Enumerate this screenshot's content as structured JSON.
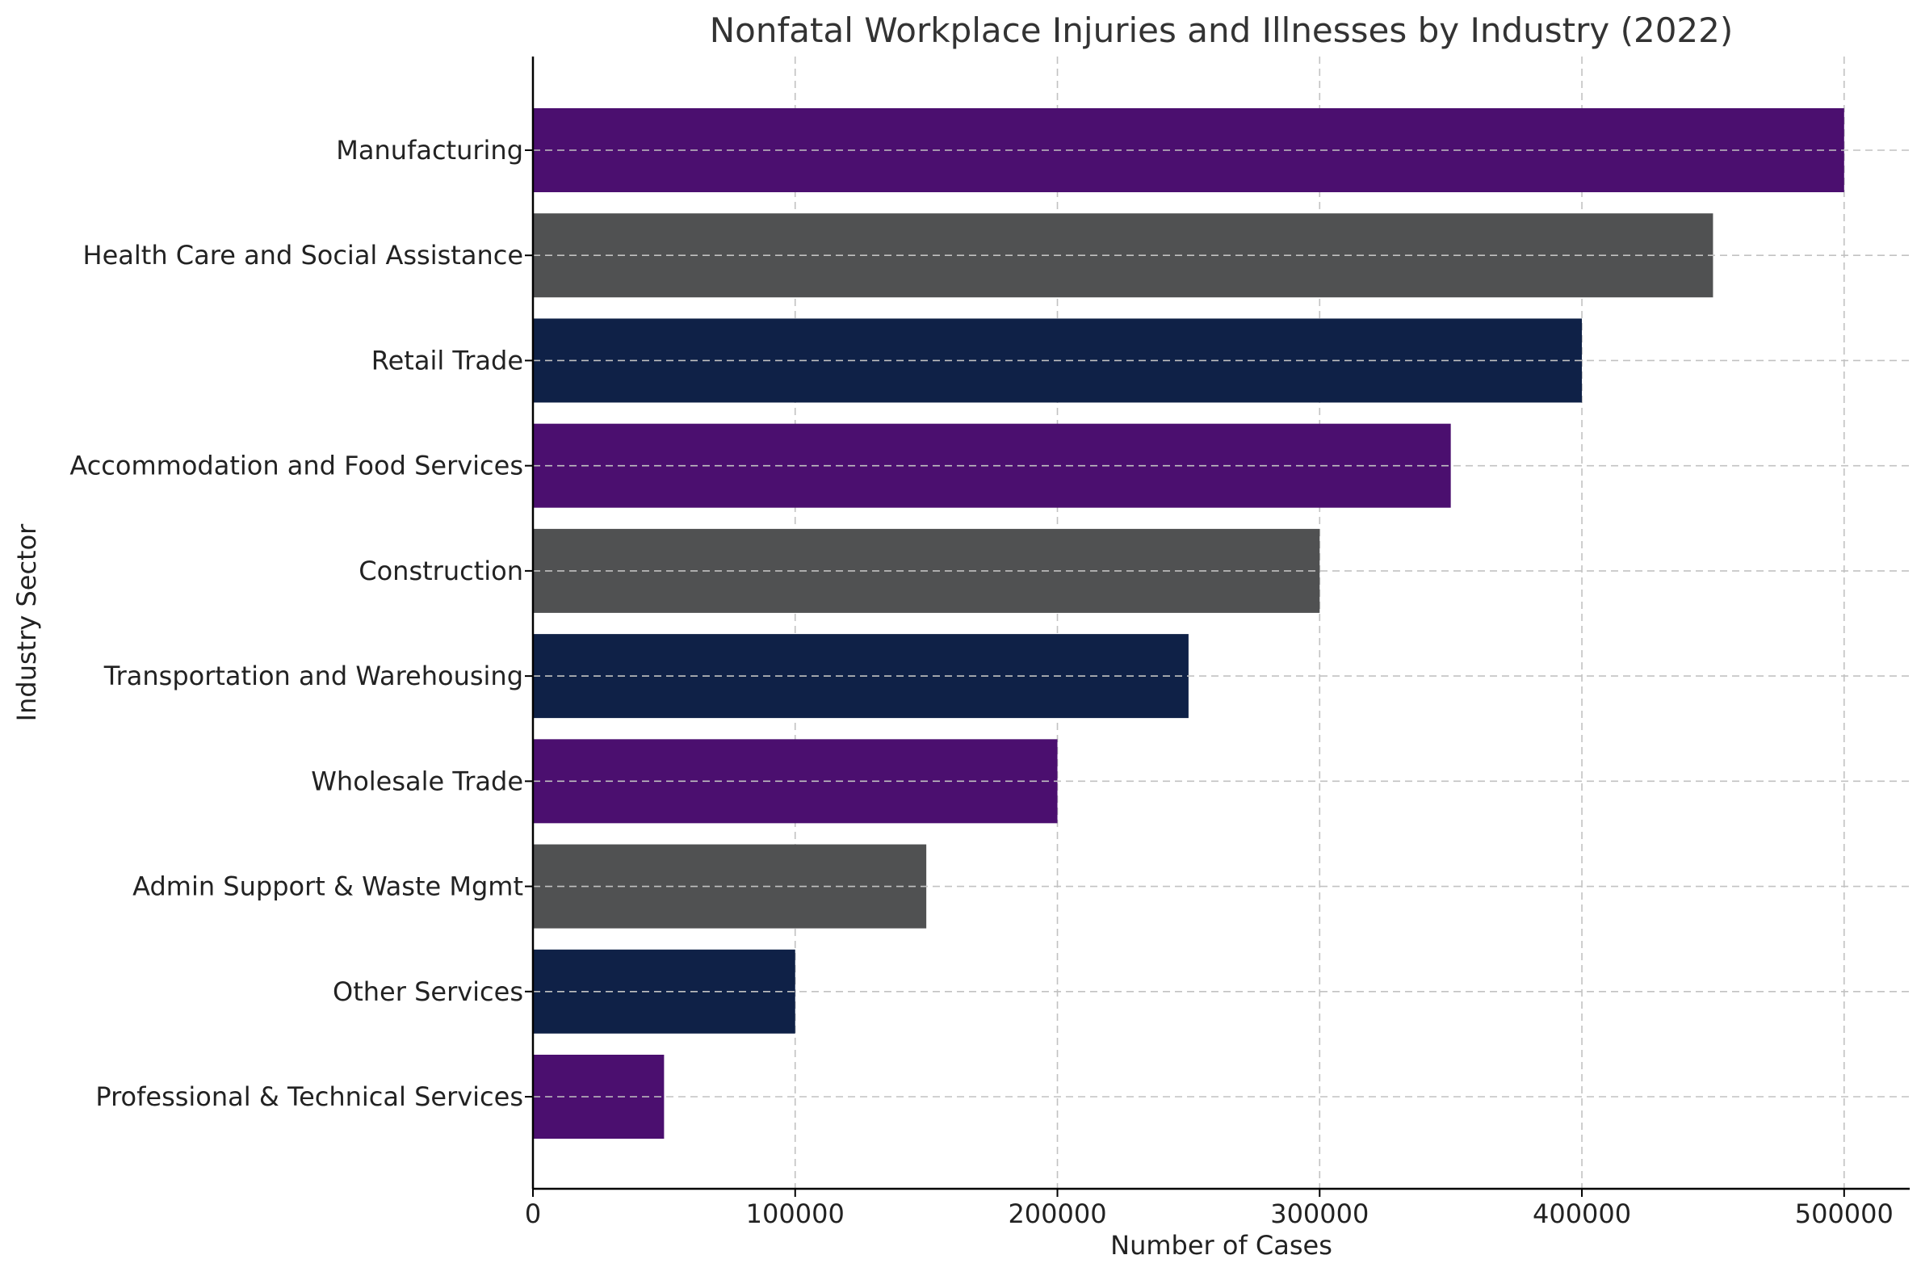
{
  "chart_data": {
    "type": "bar",
    "orientation": "horizontal",
    "title": "Nonfatal Workplace Injuries and Illnesses by Industry (2022)",
    "xlabel": "Number of Cases",
    "ylabel": "Industry Sector",
    "xlim": [
      0,
      525000
    ],
    "xticks": [
      0,
      100000,
      200000,
      300000,
      400000,
      500000
    ],
    "xtick_labels": [
      "0",
      "100000",
      "200000",
      "300000",
      "400000",
      "500000"
    ],
    "grid": true,
    "categories": [
      "Manufacturing",
      "Health Care and Social Assistance",
      "Retail Trade",
      "Accommodation and Food Services",
      "Construction",
      "Transportation and Warehousing",
      "Wholesale Trade",
      "Admin Support & Waste Mgmt",
      "Other Services",
      "Professional & Technical Services"
    ],
    "values": [
      500000,
      450000,
      400000,
      350000,
      300000,
      250000,
      200000,
      150000,
      100000,
      50000
    ],
    "colors": [
      "#4b0f6f",
      "#505152",
      "#0f2147",
      "#4b0f6f",
      "#505152",
      "#0f2147",
      "#4b0f6f",
      "#505152",
      "#0f2147",
      "#4b0f6f"
    ]
  }
}
